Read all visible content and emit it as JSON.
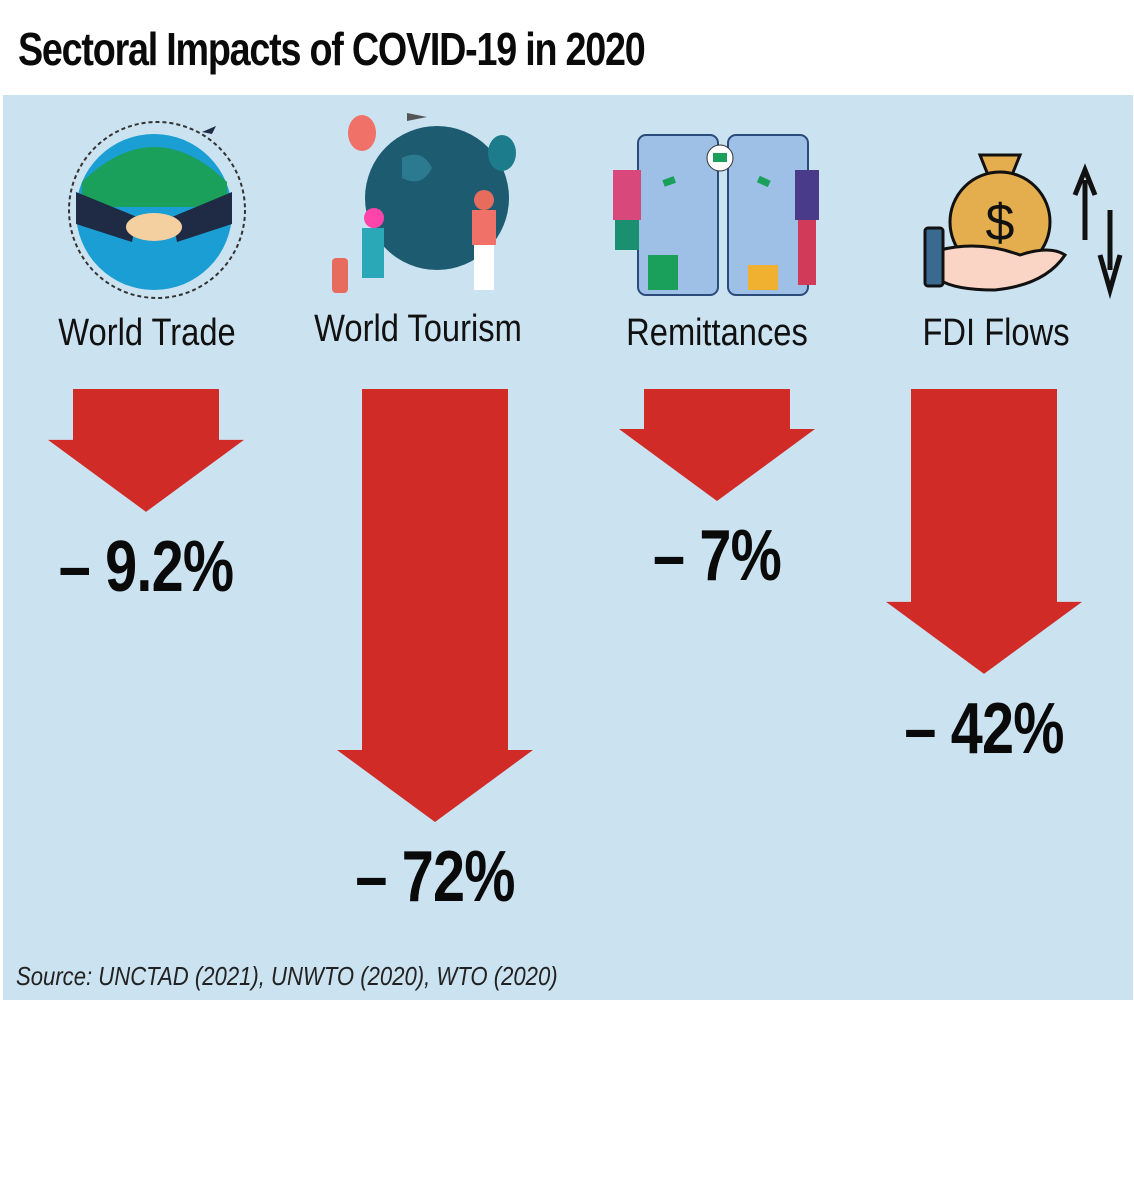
{
  "title": "Sectoral Impacts of COVID-19 in 2020",
  "source": "Source: UNCTAD (2021), UNWTO (2020), WTO (2020)",
  "colors": {
    "background": "#cbe2f0",
    "arrow": "#d02b27",
    "text": "#0a0a0a"
  },
  "chart_data": {
    "type": "bar",
    "title": "Sectoral Impacts of COVID-19 in 2020",
    "orientation": "downward-arrows",
    "categories": [
      "World Trade",
      "World Tourism",
      "Remittances",
      "FDI Flows"
    ],
    "values": [
      -9.2,
      -72,
      -7,
      -42
    ],
    "value_labels": [
      "– 9.2%",
      "– 72%",
      "– 7%",
      "– 42%"
    ],
    "unit": "%",
    "icons": [
      "handshake-globe-icon",
      "travel-globe-icon",
      "money-transfer-phones-icon",
      "money-bag-hand-icon"
    ],
    "xlabel": "",
    "ylabel": "",
    "ylim": [
      -72,
      0
    ],
    "grid": false,
    "source": "Source: UNCTAD (2021), UNWTO (2020), WTO (2020)"
  }
}
